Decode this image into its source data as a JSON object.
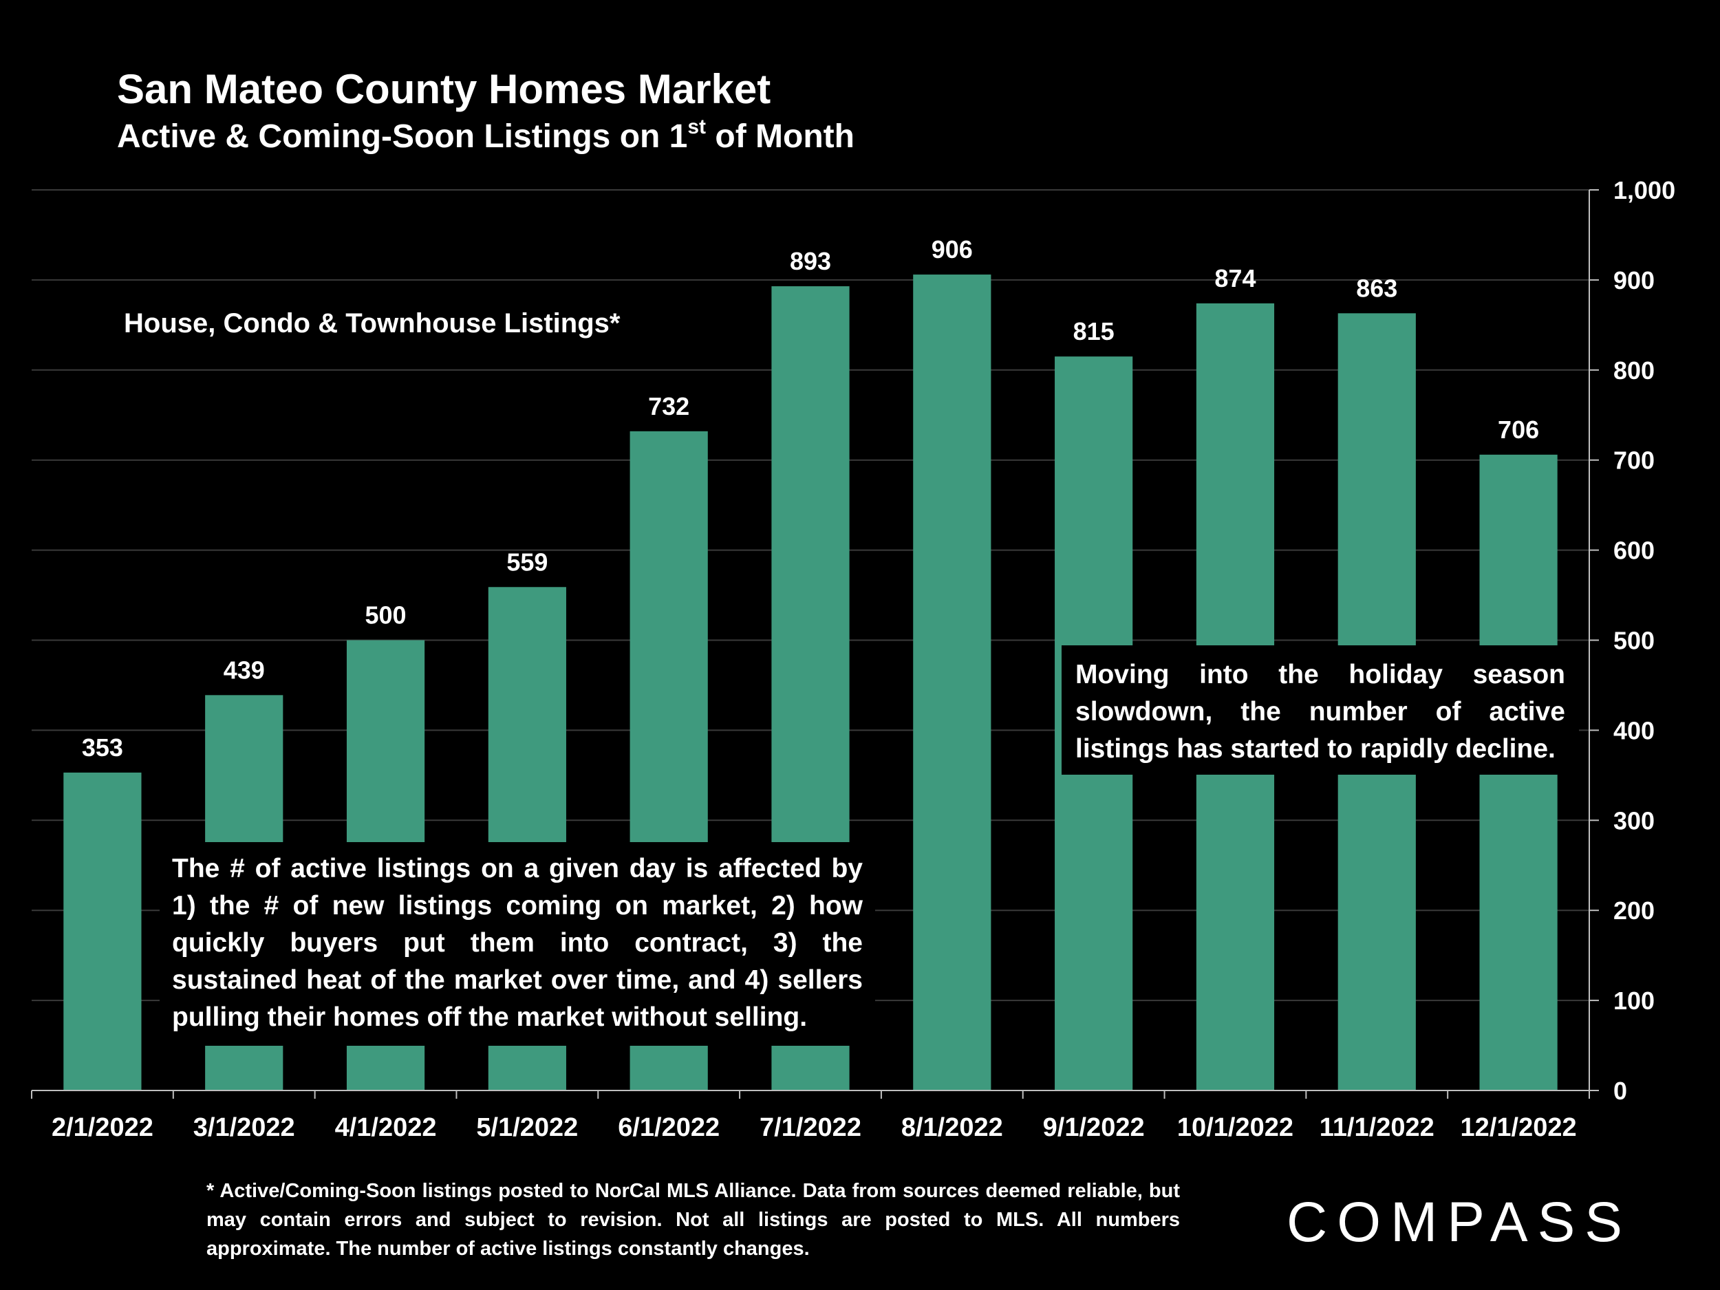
{
  "header": {
    "title": "San Mateo County Homes Market",
    "subtitle_main": "Active & Coming-Soon Listings on 1",
    "subtitle_sup": "st",
    "subtitle_tail": " of Month"
  },
  "inset_label": "House, Condo & Townhouse Listings*",
  "callouts": {
    "left": "The # of active listings on a given day is affected by 1) the # of new listings coming on market, 2) how quickly buyers put them into contract, 3) the sustained heat of the market over time, and 4) sellers pulling their homes off the market without selling.",
    "right": "Moving into the holiday season slowdown, the number of active listings has started to rapidly decline."
  },
  "footnote": "* Active/Coming-Soon listings posted to NorCal MLS Alliance.  Data from sources deemed reliable, but may contain errors and subject to revision.  Not all listings are posted to MLS. All numbers approximate. The number of active listings constantly changes.",
  "logo": "COMPASS",
  "chart_data": {
    "type": "bar",
    "title": "San Mateo County Homes Market",
    "subtitle": "Active & Coming-Soon Listings on 1st of Month",
    "categories": [
      "2/1/2022",
      "3/1/2022",
      "4/1/2022",
      "5/1/2022",
      "6/1/2022",
      "7/1/2022",
      "8/1/2022",
      "9/1/2022",
      "10/1/2022",
      "11/1/2022",
      "12/1/2022"
    ],
    "values": [
      353,
      439,
      500,
      559,
      732,
      893,
      906,
      815,
      874,
      863,
      706
    ],
    "value_labels": [
      "353",
      "439",
      "500",
      "559",
      "732",
      "893",
      "906",
      "815",
      "874",
      "863",
      "706"
    ],
    "ylim": [
      0,
      1000
    ],
    "yticks": [
      0,
      100,
      200,
      300,
      400,
      500,
      600,
      700,
      800,
      900,
      1000
    ],
    "ytick_labels": [
      "0",
      "100",
      "200",
      "300",
      "400",
      "500",
      "600",
      "700",
      "800",
      "900",
      "1,000"
    ],
    "y_axis_side": "right",
    "grid": true,
    "bar_color": "#3f9a7e",
    "grid_color": "#3a3a3a",
    "background": "#000000"
  }
}
